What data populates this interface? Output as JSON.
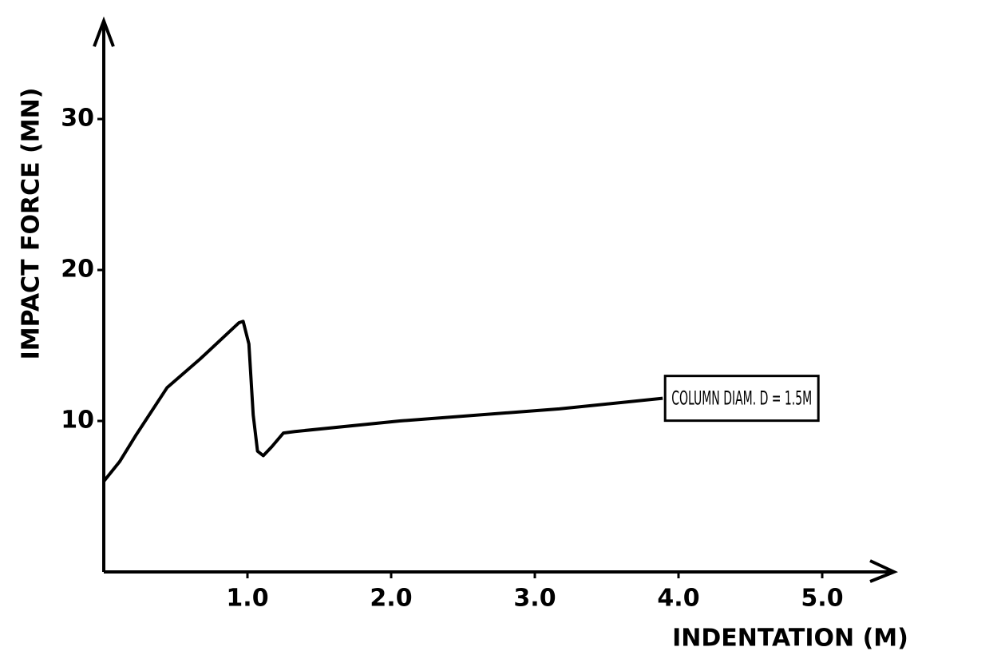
{
  "chart_data": {
    "type": "line",
    "xlabel": "INDENTATION (M)",
    "ylabel": "IMPACT FORCE (MN)",
    "x": [
      0,
      0.11,
      0.22,
      0.44,
      0.67,
      0.94,
      0.97,
      1.01,
      1.04,
      1.07,
      1.11,
      1.17,
      1.25,
      1.33,
      2.06,
      3.17,
      3.89
    ],
    "values": [
      6.0,
      7.3,
      9.0,
      12.2,
      14.1,
      16.5,
      16.6,
      15.1,
      10.4,
      8.0,
      7.7,
      8.3,
      9.2,
      9.3,
      10.0,
      10.8,
      11.5
    ],
    "color": "#000000",
    "annotations": [
      "COLUMN DIAM. D = 1.5M"
    ],
    "xlim": [
      0,
      5.5
    ],
    "ylim": [
      0,
      36.5
    ],
    "xticks": [
      {
        "value": 1,
        "label": "1.0"
      },
      {
        "value": 2,
        "label": "2.0"
      },
      {
        "value": 3,
        "label": "3.0"
      },
      {
        "value": 4,
        "label": "4.0"
      },
      {
        "value": 5,
        "label": "5.0"
      }
    ],
    "yticks": [
      10,
      20,
      30
    ],
    "grid": false
  }
}
